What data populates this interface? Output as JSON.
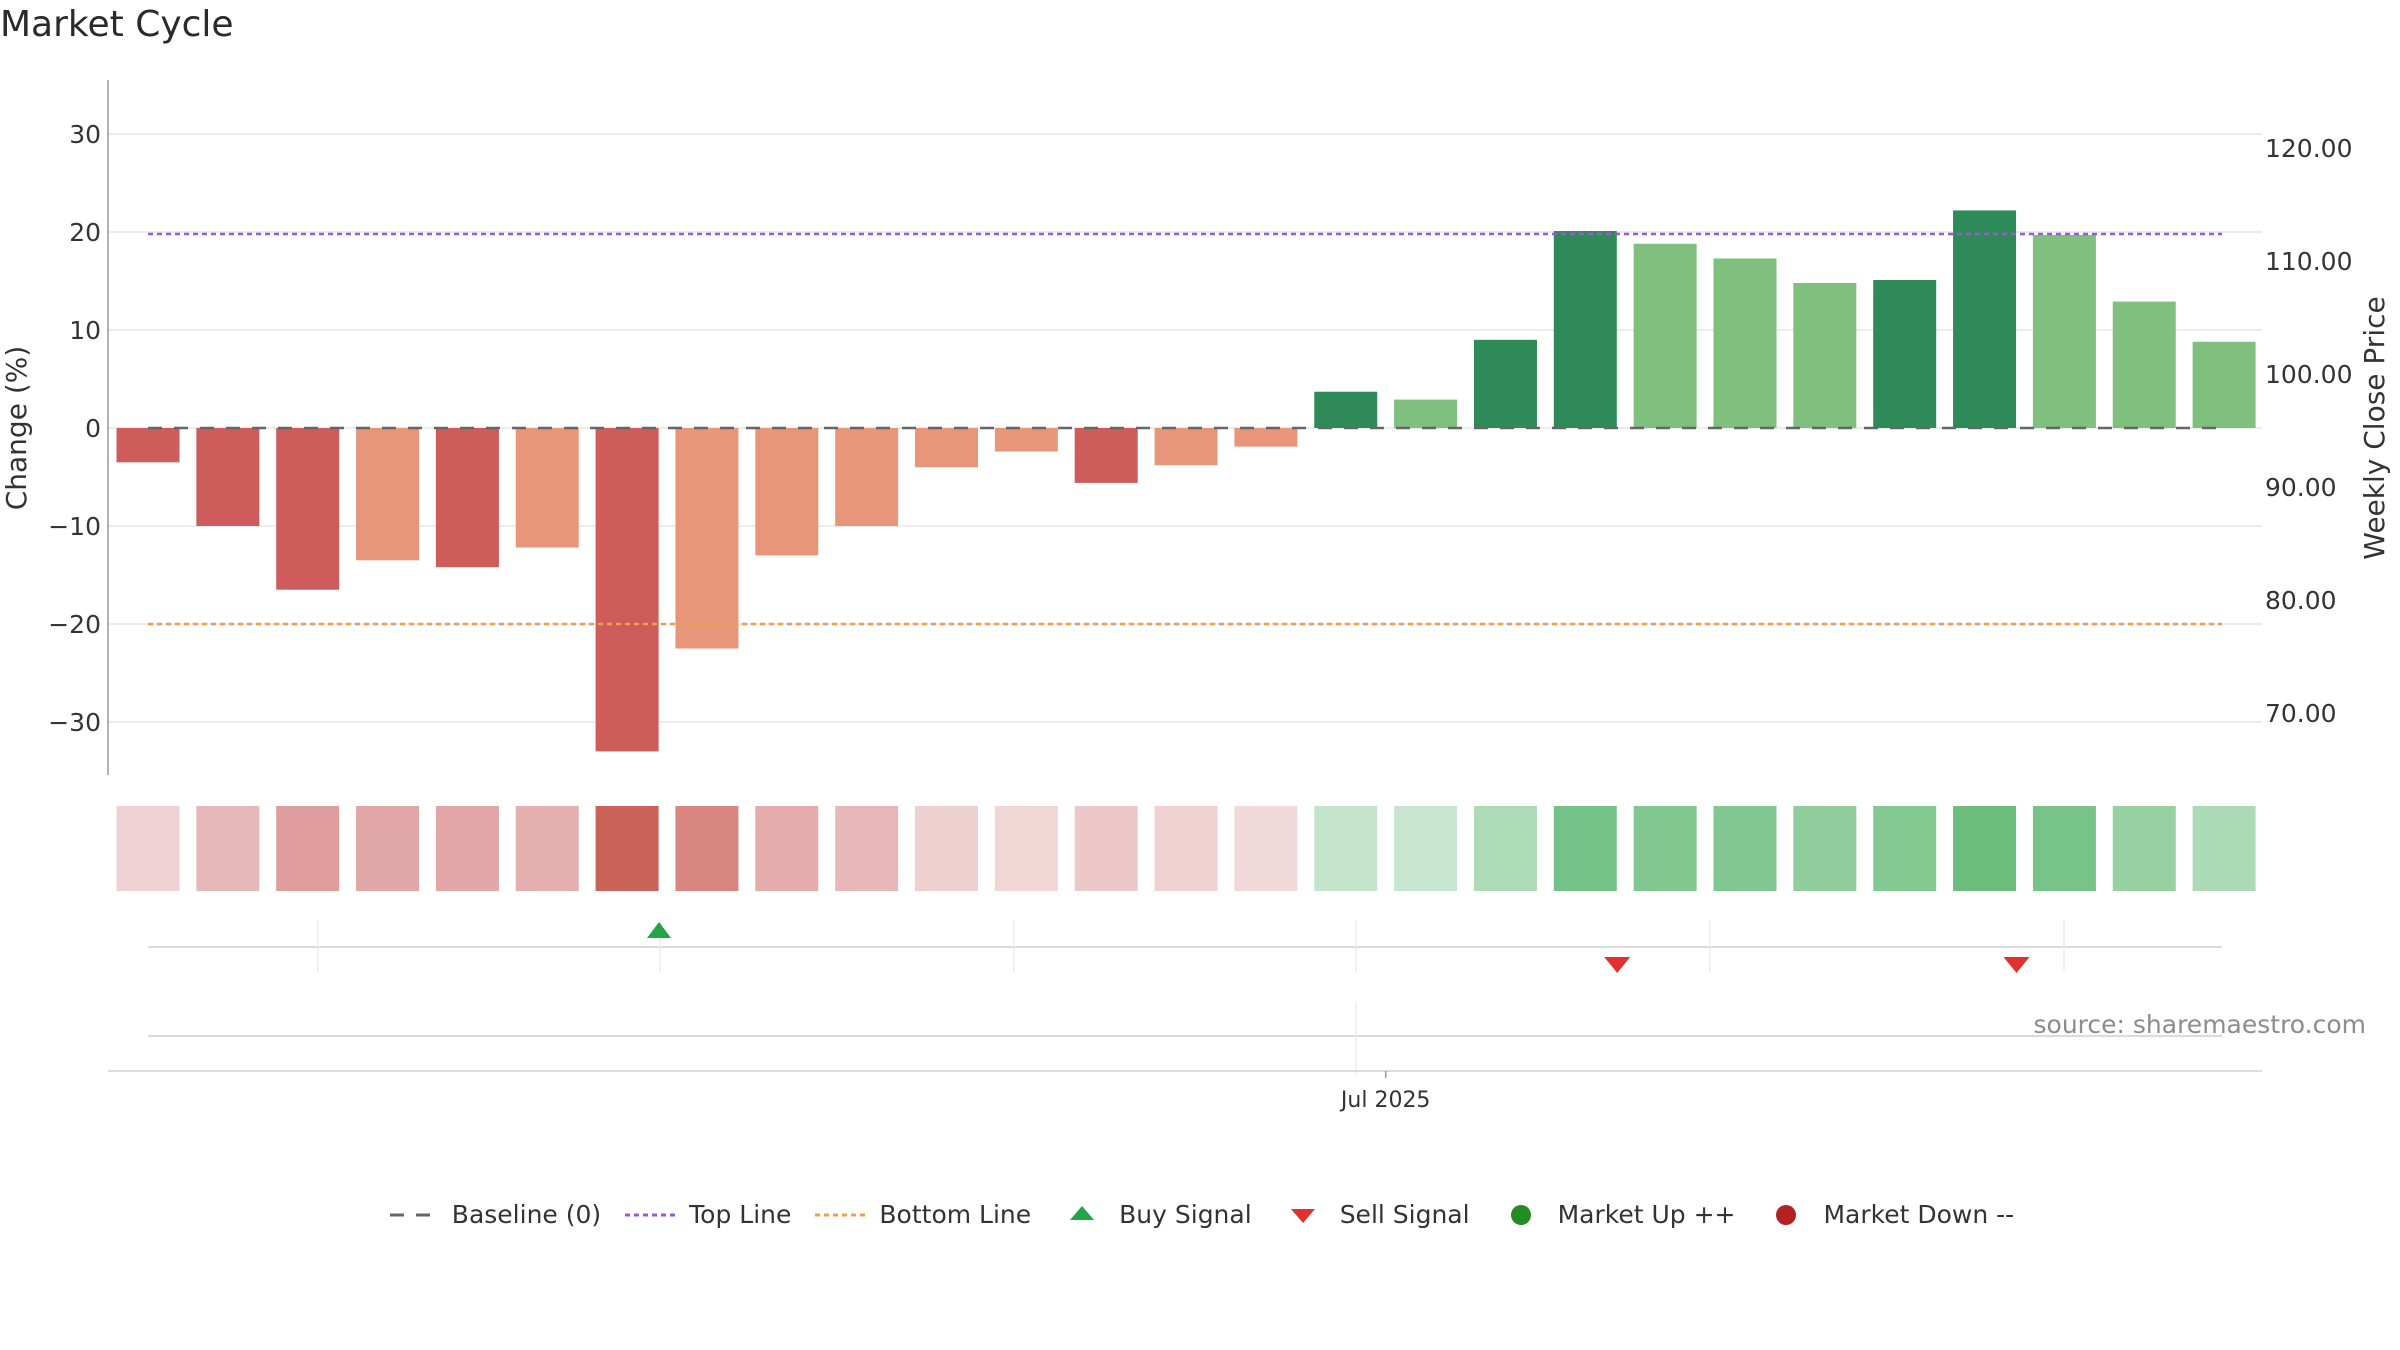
{
  "title": "Market Cycle",
  "source": "source: sharemaestro.com",
  "colors": {
    "strong_down": "#cd5c5a",
    "weak_down": "#e8967a",
    "strong_up": "#2e8b57",
    "weak_up": "#7fc07f",
    "top_line": "#9b59d6",
    "bottom_line": "#f39c4d",
    "baseline": "#666666",
    "buy": "#22a447",
    "sell": "#e03030",
    "market_up": "#228b22",
    "market_down": "#b22222"
  },
  "chart_data": {
    "type": "bar",
    "y_left": {
      "label": "Change (%)",
      "range": [
        -36,
        36
      ],
      "ticks": [
        30,
        20,
        10,
        0,
        -10,
        -20,
        -30
      ],
      "tick_labels": [
        "30",
        "20",
        "10",
        "0",
        "−10",
        "−20",
        "−30"
      ]
    },
    "y_right": {
      "label": "Weekly Close Price",
      "ticks": [
        120,
        110,
        100,
        90,
        80,
        70
      ],
      "tick_labels": [
        "120.00",
        "110.00",
        "100.00",
        "90.00",
        "80.00",
        "70.00"
      ]
    },
    "x_tick_labels": [
      {
        "index": 15.5,
        "label": "Jul 2025"
      }
    ],
    "reference_lines": {
      "top": 19.8,
      "bottom": -20,
      "baseline": 0
    },
    "grid": true,
    "bars": {
      "values": [
        -3.5,
        -10,
        -16.5,
        -13.5,
        -14.2,
        -12.2,
        -33,
        -22.5,
        -13,
        -10,
        -4,
        -2.4,
        -5.6,
        -3.8,
        -1.9,
        3.7,
        2.9,
        9,
        20.1,
        18.8,
        17.3,
        14.8,
        15.1,
        22.2,
        19.7,
        12.9,
        8.8
      ],
      "strength": [
        "strong",
        "strong",
        "strong",
        "weak",
        "strong",
        "weak",
        "strong",
        "weak",
        "weak",
        "weak",
        "weak",
        "weak",
        "strong",
        "weak",
        "weak",
        "strong",
        "weak",
        "strong",
        "strong",
        "weak",
        "weak",
        "weak",
        "strong",
        "strong",
        "weak",
        "weak",
        "weak"
      ]
    },
    "heat_strip": [
      "#efd0d3",
      "#e7b8b9",
      "#e09d9e",
      "#e1a7a6",
      "#e1a6a5",
      "#e4afae",
      "#c96257",
      "#d98681",
      "#e4adab",
      "#e8b8b8",
      "#edd0cf",
      "#f0d6d5",
      "#edc8c8",
      "#f0d1d1",
      "#f2d9d9",
      "#c4e5cc",
      "#c8e5cf",
      "#acdbb6",
      "#75c288",
      "#82c690",
      "#82c692",
      "#8fcd9d",
      "#84c892",
      "#6cbd7e",
      "#77c388",
      "#97d1a2",
      "#abdab5"
    ],
    "signals": [
      {
        "type": "buy",
        "index": 6.4
      },
      {
        "type": "sell",
        "index": 18.4
      },
      {
        "type": "sell",
        "index": 23.4
      }
    ],
    "legend": [
      {
        "key": "baseline",
        "label": "Baseline (0)"
      },
      {
        "key": "top",
        "label": "Top Line"
      },
      {
        "key": "bottom",
        "label": "Bottom Line"
      },
      {
        "key": "buy",
        "label": "Buy Signal"
      },
      {
        "key": "sell",
        "label": "Sell Signal"
      },
      {
        "key": "up",
        "label": "Market Up ++"
      },
      {
        "key": "down",
        "label": "Market Down --"
      }
    ]
  }
}
